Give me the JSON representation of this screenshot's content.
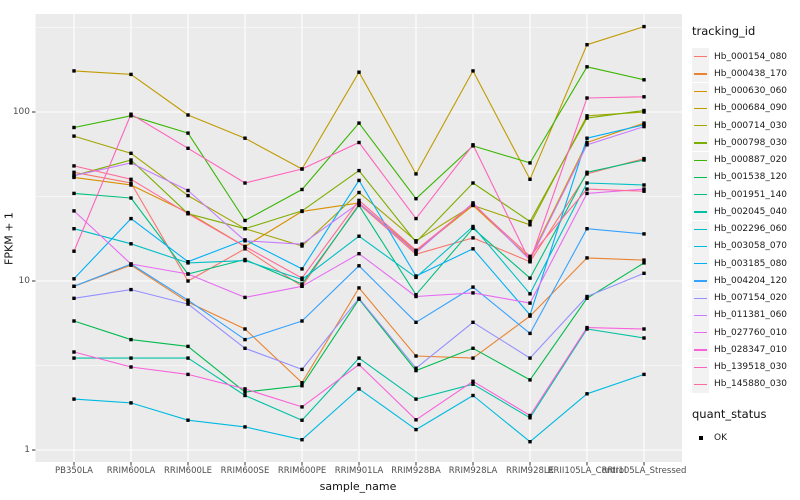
{
  "chart_data": {
    "type": "line",
    "title": "",
    "xlabel": "sample_name",
    "ylabel": "FPKM + 1",
    "x_categories": [
      "PB350LA",
      "RRIM600LA",
      "RRIM600LE",
      "RRIM600SE",
      "RRIM600PE",
      "RRIM901LA",
      "RRIM928BA",
      "RRIM928LA",
      "RRIM928LE",
      "RRII105LA_Control",
      "RRII105LA_Stressed"
    ],
    "y_axis": {
      "scale": "log10",
      "tick_values": [
        1,
        10,
        100
      ],
      "tick_labels": [
        "1",
        "10",
        "100"
      ],
      "range": [
        1,
        330
      ]
    },
    "grid": "on",
    "panel_bg": "#EBEBEB",
    "grid_color": "#FFFFFF",
    "marker": {
      "shape": "filled-square",
      "color": "#000000"
    },
    "legend": {
      "position": "right",
      "color_title": "tracking_id",
      "shape_title": "quant_status",
      "shape_items": [
        {
          "label": "OK",
          "marker": "filled-square"
        }
      ]
    },
    "series": [
      {
        "name": "Hb_000154_080",
        "color": "#F8766D",
        "values": [
          44,
          38,
          10,
          15.5,
          9.3,
          28.5,
          14.4,
          18,
          13,
          43,
          53
        ]
      },
      {
        "name": "Hb_000438_170",
        "color": "#EA8331",
        "values": [
          9.3,
          12.4,
          7.5,
          5.2,
          2.5,
          9.1,
          3.6,
          3.5,
          6.2,
          13.7,
          13.3
        ]
      },
      {
        "name": "Hb_000630_060",
        "color": "#D89000",
        "values": [
          41,
          37,
          25.4,
          16,
          25.8,
          29,
          15,
          28,
          13.6,
          66,
          86
        ]
      },
      {
        "name": "Hb_000684_090",
        "color": "#C09B00",
        "values": [
          175,
          167,
          96,
          70,
          46,
          172,
          43,
          175,
          40,
          250,
          320
        ]
      },
      {
        "name": "Hb_000714_030",
        "color": "#A3A500",
        "values": [
          72,
          57,
          32,
          20.4,
          16.1,
          33.4,
          17.3,
          28,
          21.5,
          95,
          100
        ]
      },
      {
        "name": "Hb_000798_030",
        "color": "#7CAE00",
        "values": [
          42,
          52,
          25,
          20.4,
          26,
          45,
          17,
          38,
          22.5,
          92,
          102
        ]
      },
      {
        "name": "Hb_000887_020",
        "color": "#39B600",
        "values": [
          81,
          95,
          75,
          22.8,
          34.8,
          86,
          30.7,
          63,
          50,
          185,
          155
        ]
      },
      {
        "name": "Hb_001538_120",
        "color": "#00BB4E",
        "values": [
          5.8,
          4.5,
          4.1,
          2.2,
          2.4,
          7.8,
          2.95,
          4.0,
          2.6,
          7.9,
          12.8
        ]
      },
      {
        "name": "Hb_001951_140",
        "color": "#00BF7D",
        "values": [
          33,
          31,
          11,
          13.4,
          9.6,
          28,
          8.3,
          20.5,
          10.4,
          44,
          52
        ]
      },
      {
        "name": "Hb_002045_040",
        "color": "#00C1A3",
        "values": [
          3.5,
          3.5,
          3.5,
          2.1,
          1.5,
          3.5,
          2.0,
          2.45,
          1.55,
          5.2,
          4.6
        ]
      },
      {
        "name": "Hb_002296_060",
        "color": "#00BFC4",
        "values": [
          20.4,
          16.6,
          12.8,
          13.2,
          10.2,
          18.4,
          10.5,
          21,
          8.4,
          38,
          37
        ]
      },
      {
        "name": "Hb_003058_070",
        "color": "#00BAE0",
        "values": [
          2.0,
          1.9,
          1.5,
          1.37,
          1.15,
          2.3,
          1.32,
          2.1,
          1.12,
          2.15,
          2.8
        ]
      },
      {
        "name": "Hb_003185_080",
        "color": "#00B0F6",
        "values": [
          10.3,
          23.4,
          13,
          17.5,
          11.8,
          39.4,
          10.7,
          15.5,
          6.3,
          70,
          84
        ]
      },
      {
        "name": "Hb_004204_120",
        "color": "#35A2FF",
        "values": [
          9.3,
          12.6,
          7.7,
          4.5,
          5.8,
          12.3,
          5.7,
          9.2,
          4.9,
          20.4,
          19
        ]
      },
      {
        "name": "Hb_007154_020",
        "color": "#9590FF",
        "values": [
          7.9,
          8.9,
          7.3,
          4.0,
          3.0,
          7.9,
          3.05,
          5.7,
          3.5,
          8.1,
          11.1
        ]
      },
      {
        "name": "Hb_011381_060",
        "color": "#C77CFF",
        "values": [
          42,
          50,
          34.3,
          17.3,
          16.5,
          29,
          14.7,
          29,
          13.3,
          64,
          82
        ]
      },
      {
        "name": "Hb_027760_010",
        "color": "#E76BF3",
        "values": [
          26,
          12.6,
          11,
          8.0,
          9.3,
          14.5,
          8.1,
          8.5,
          7.4,
          33,
          35
        ]
      },
      {
        "name": "Hb_028347_010",
        "color": "#FA62DB",
        "values": [
          3.8,
          3.1,
          2.8,
          2.3,
          1.8,
          3.2,
          1.51,
          2.55,
          1.6,
          5.3,
          5.2
        ]
      },
      {
        "name": "Hb_139518_030",
        "color": "#FF62BC",
        "values": [
          15,
          97,
          61,
          38,
          46,
          66,
          23.4,
          64,
          13,
          121,
          123
        ]
      },
      {
        "name": "Hb_145880_030",
        "color": "#FF6A98",
        "values": [
          48,
          40,
          25,
          16,
          10.4,
          30,
          15.2,
          28.5,
          14,
          35,
          34
        ]
      }
    ]
  }
}
